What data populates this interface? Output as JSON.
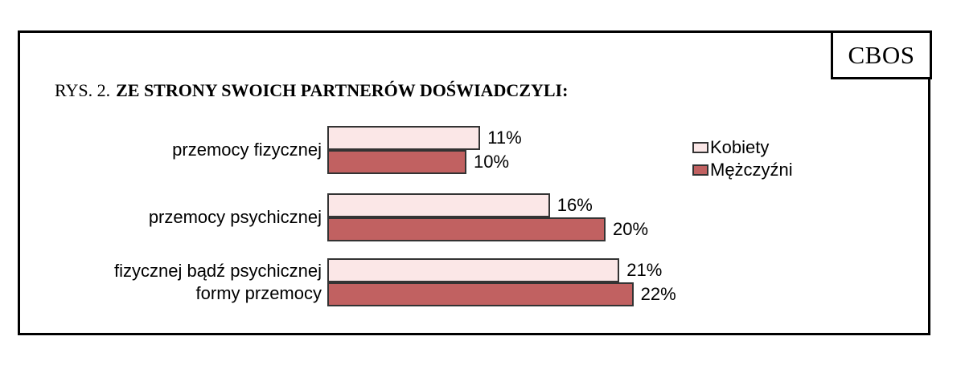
{
  "header": {
    "brand": "CBOS",
    "figure_label": "RYS. 2.",
    "title": "ZE STRONY SWOICH PARTNERÓW DOŚWIADCZYLI:"
  },
  "chart_data": {
    "type": "bar",
    "orientation": "horizontal",
    "title": "RYS. 2. ZE STRONY SWOICH PARTNERÓW DOŚWIADCZYLI:",
    "categories": [
      "przemocy fizycznej",
      "przemocy psychicznej",
      "fizycznej bądź psychicznej\nformy przemocy"
    ],
    "series": [
      {
        "name": "Kobiety",
        "values": [
          11,
          16,
          21
        ],
        "color": "#FBE7E7"
      },
      {
        "name": "Mężczyźni",
        "values": [
          10,
          20,
          22
        ],
        "color": "#C16161"
      }
    ],
    "value_suffix": "%",
    "xlim": [
      0,
      25
    ],
    "grid": false,
    "axes_visible": false,
    "legend_position": "right",
    "colors": {
      "bar_outline": "#333333",
      "frame_border": "#000000",
      "background": "#ffffff",
      "text": "#000000"
    }
  }
}
